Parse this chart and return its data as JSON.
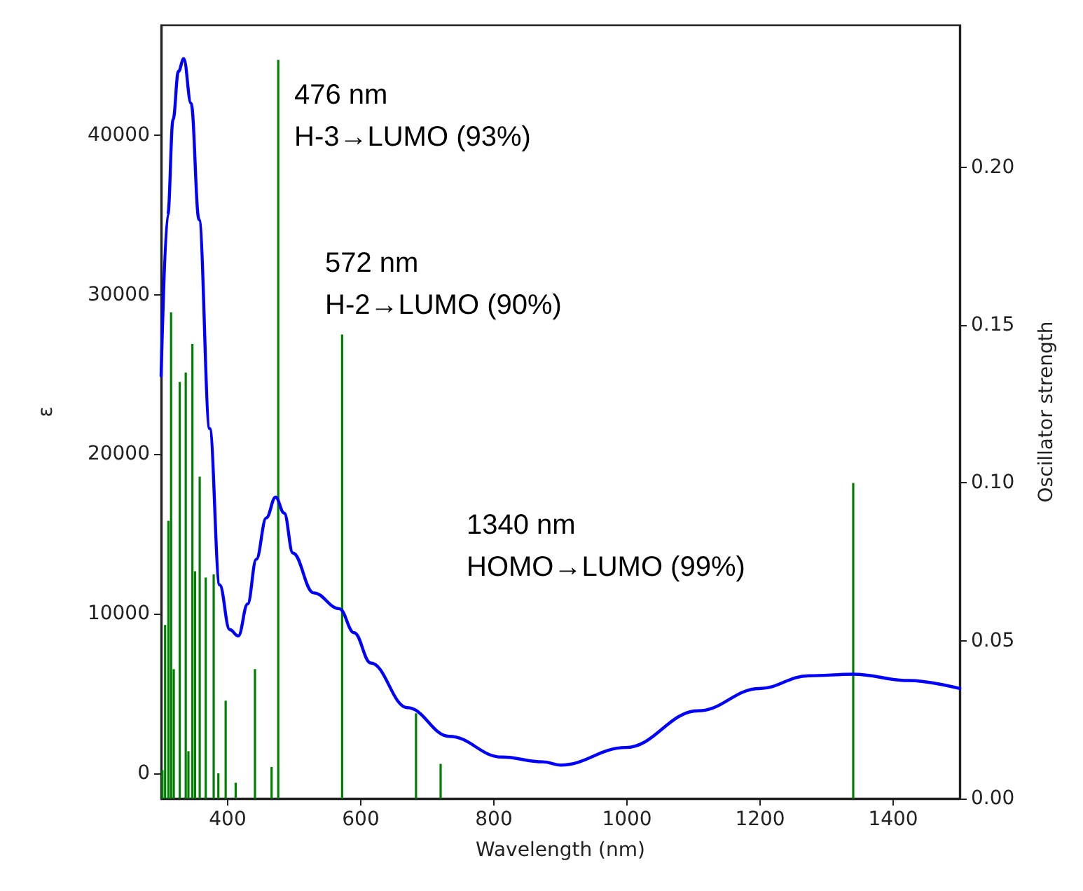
{
  "chart_data": {
    "type": "line",
    "xlabel": "Wavelength (nm)",
    "ylabel": "ε",
    "y2label": "Oscillator strength",
    "xlim": [
      300,
      1500
    ],
    "xticks": [
      400,
      600,
      800,
      1000,
      1200,
      1400
    ],
    "ylim": [
      -1600,
      46900
    ],
    "yticks": [
      0,
      10000,
      20000,
      30000,
      40000
    ],
    "y2lim": [
      0,
      0.245
    ],
    "y2ticks": [
      {
        "value": 0,
        "label": "0.00"
      },
      {
        "value": 0.05,
        "label": "0.05"
      },
      {
        "value": 0.1,
        "label": "0.10"
      },
      {
        "value": 0.15,
        "label": "0.15"
      },
      {
        "value": 0.2,
        "label": "0.20"
      }
    ],
    "grid": false,
    "series": [
      {
        "color": "#0000ff",
        "x": [
          300,
          310,
          318,
          326,
          334,
          345,
          357,
          373,
          388,
          403,
          416,
          430,
          443,
          458,
          472,
          485,
          498,
          529,
          568,
          590,
          615,
          670,
          733,
          812,
          874,
          900,
          998,
          1107,
          1199,
          1273,
          1340,
          1423,
          1500
        ],
        "values": [
          24900,
          35000,
          41000,
          44000,
          44800,
          42000,
          34700,
          21600,
          11800,
          9000,
          8600,
          10600,
          13400,
          16000,
          17300,
          16300,
          13800,
          11300,
          10300,
          8800,
          6900,
          4100,
          2300,
          1000,
          700,
          500,
          1600,
          3900,
          5300,
          6100,
          6200,
          5800,
          5300
        ]
      },
      {
        "type": "bar",
        "axis": "y2",
        "color": "#008000",
        "x": [
          302,
          306,
          311,
          315,
          319,
          328,
          337,
          341,
          347,
          351,
          358,
          367,
          379,
          386,
          397,
          412,
          441,
          466,
          476,
          572,
          683,
          720,
          1340
        ],
        "values": [
          0.009,
          0.055,
          0.088,
          0.154,
          0.041,
          0.132,
          0.135,
          0.015,
          0.144,
          0.072,
          0.102,
          0.07,
          0.071,
          0.008,
          0.031,
          0.005,
          0.041,
          0.01,
          0.234,
          0.147,
          0.027,
          0.011,
          0.1
        ]
      }
    ],
    "annotations": [
      "476 nm\nH-3→LUMO (93%)",
      "572 nm\nH-2→LUMO (90%)",
      "1340 nm\nHOMO→LUMO (99%)"
    ]
  }
}
